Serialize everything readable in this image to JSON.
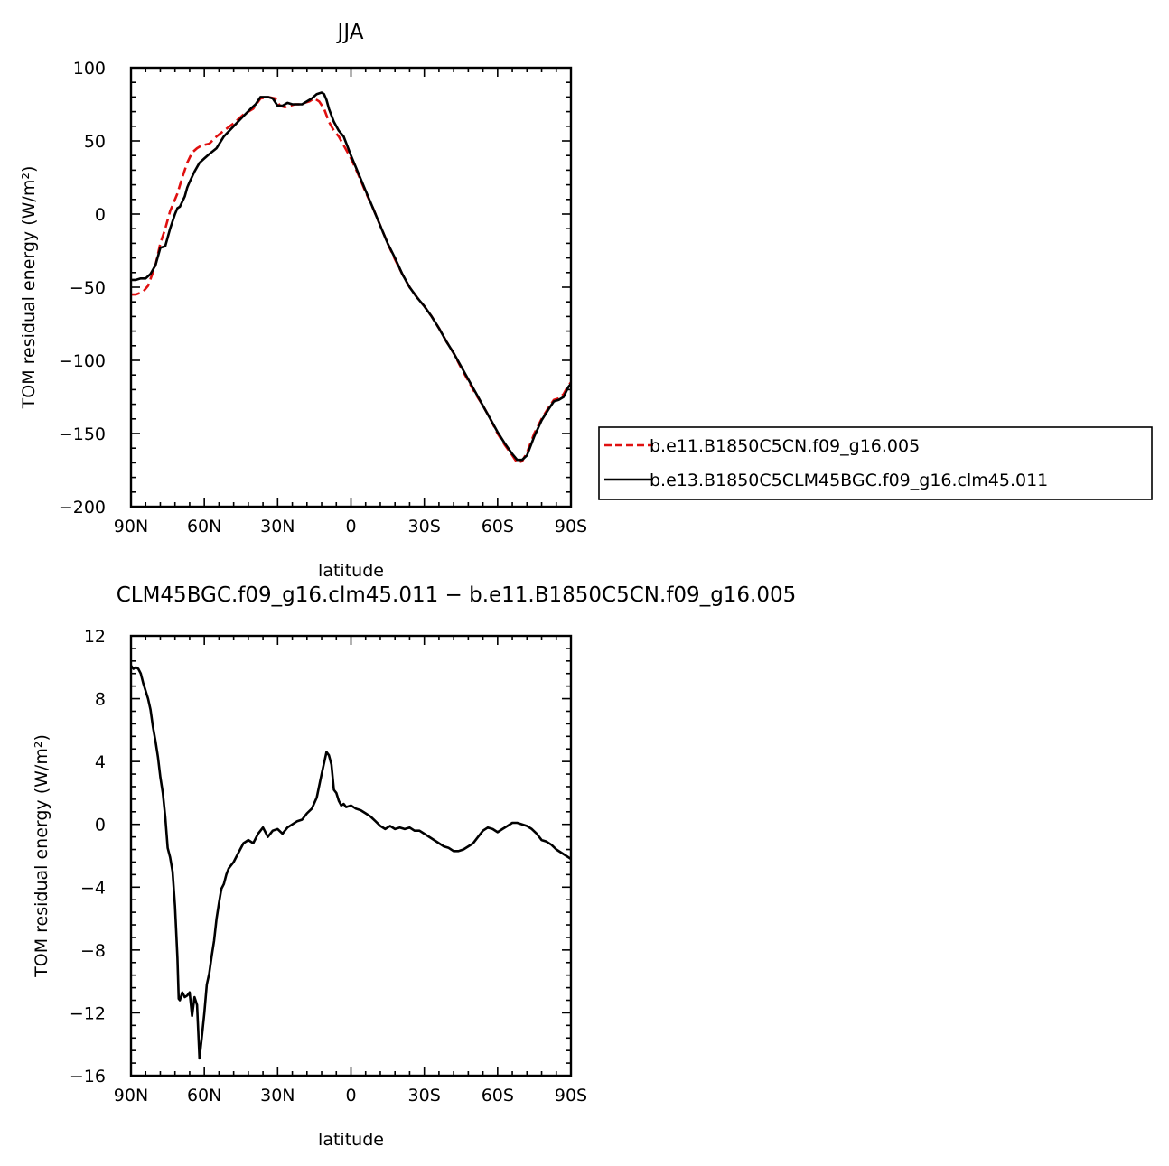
{
  "chart_data": [
    {
      "type": "line",
      "title": "JJA",
      "xlabel": "latitude",
      "ylabel": "TOM residual energy (W/m²)",
      "xlim": [
        90,
        -90
      ],
      "ylim": [
        -200,
        100
      ],
      "xticks": [
        90,
        60,
        30,
        0,
        -30,
        -60,
        -90
      ],
      "xtick_labels": [
        "90N",
        "60N",
        "30N",
        "0",
        "30S",
        "60S",
        "90S"
      ],
      "yticks": [
        100,
        50,
        0,
        -50,
        -100,
        -150,
        -200
      ],
      "ytick_labels": [
        "100",
        "50",
        "0",
        "−50",
        "−100",
        "−150",
        "−200"
      ],
      "legend": "right",
      "series": [
        {
          "name": "b.e11.B1850C5CN.f09_g16.005",
          "color": "#e01010",
          "dash": "dashed",
          "points": [
            [
              90,
              -55
            ],
            [
              88,
              -55
            ],
            [
              85,
              -53
            ],
            [
              83,
              -49
            ],
            [
              80,
              -35
            ],
            [
              78,
              -20
            ],
            [
              76,
              -10
            ],
            [
              74,
              2
            ],
            [
              71,
              14
            ],
            [
              69,
              25
            ],
            [
              67,
              35
            ],
            [
              65,
              42
            ],
            [
              63,
              45
            ],
            [
              61,
              47
            ],
            [
              58,
              48
            ],
            [
              55,
              53
            ],
            [
              52,
              57
            ],
            [
              48,
              62
            ],
            [
              44,
              68
            ],
            [
              40,
              72
            ],
            [
              37,
              79
            ],
            [
              34,
              80
            ],
            [
              31,
              79
            ],
            [
              29,
              74
            ],
            [
              27,
              73
            ],
            [
              25,
              74
            ],
            [
              23,
              75
            ],
            [
              21,
              75
            ],
            [
              19,
              76
            ],
            [
              17,
              77
            ],
            [
              15,
              79
            ],
            [
              13,
              77
            ],
            [
              11,
              72
            ],
            [
              9,
              63
            ],
            [
              7,
              57
            ],
            [
              5,
              53
            ],
            [
              3,
              47
            ],
            [
              0,
              38
            ],
            [
              -3,
              27
            ],
            [
              -6,
              15
            ],
            [
              -9,
              4
            ],
            [
              -12,
              -8
            ],
            [
              -15,
              -20
            ],
            [
              -18,
              -31
            ],
            [
              -21,
              -41
            ],
            [
              -24,
              -50
            ],
            [
              -27,
              -57
            ],
            [
              -30,
              -63
            ],
            [
              -33,
              -70
            ],
            [
              -36,
              -78
            ],
            [
              -39,
              -87
            ],
            [
              -42,
              -95
            ],
            [
              -45,
              -105
            ],
            [
              -48,
              -114
            ],
            [
              -51,
              -123
            ],
            [
              -54,
              -131
            ],
            [
              -57,
              -140
            ],
            [
              -60,
              -150
            ],
            [
              -63,
              -158
            ],
            [
              -66,
              -165
            ],
            [
              -68,
              -170
            ],
            [
              -70,
              -169
            ],
            [
              -72,
              -163
            ],
            [
              -75,
              -150
            ],
            [
              -78,
              -140
            ],
            [
              -81,
              -132
            ],
            [
              -83,
              -127
            ],
            [
              -85,
              -126
            ],
            [
              -87,
              -123
            ],
            [
              -89,
              -117
            ],
            [
              -90,
              -115
            ]
          ]
        },
        {
          "name": "b.e13.B1850C5CLM45BGC.f09_g16.clm45.011",
          "color": "#000000",
          "dash": "solid",
          "points": [
            [
              90,
              -45
            ],
            [
              88,
              -45
            ],
            [
              86,
              -44
            ],
            [
              84,
              -44
            ],
            [
              82,
              -41
            ],
            [
              80,
              -35
            ],
            [
              78,
              -23
            ],
            [
              76,
              -22
            ],
            [
              74,
              -10
            ],
            [
              72,
              0
            ],
            [
              71,
              4
            ],
            [
              70,
              5
            ],
            [
              68,
              12
            ],
            [
              67,
              18
            ],
            [
              66,
              22
            ],
            [
              64,
              29
            ],
            [
              62,
              35
            ],
            [
              60,
              38
            ],
            [
              58,
              41
            ],
            [
              55,
              45
            ],
            [
              52,
              53
            ],
            [
              48,
              60
            ],
            [
              44,
              67
            ],
            [
              41,
              72
            ],
            [
              39,
              75
            ],
            [
              37,
              80
            ],
            [
              34,
              80
            ],
            [
              32,
              79
            ],
            [
              30,
              74
            ],
            [
              28,
              74
            ],
            [
              26,
              76
            ],
            [
              24,
              75
            ],
            [
              22,
              75
            ],
            [
              20,
              75
            ],
            [
              18,
              77
            ],
            [
              16,
              79
            ],
            [
              14,
              82
            ],
            [
              12,
              83
            ],
            [
              11,
              82
            ],
            [
              10,
              78
            ],
            [
              9,
              72
            ],
            [
              7,
              63
            ],
            [
              5,
              57
            ],
            [
              3,
              53
            ],
            [
              0,
              40
            ],
            [
              -3,
              28
            ],
            [
              -6,
              16
            ],
            [
              -9,
              4
            ],
            [
              -12,
              -8
            ],
            [
              -15,
              -20
            ],
            [
              -18,
              -30
            ],
            [
              -21,
              -41
            ],
            [
              -24,
              -50
            ],
            [
              -27,
              -57
            ],
            [
              -30,
              -63
            ],
            [
              -33,
              -70
            ],
            [
              -36,
              -78
            ],
            [
              -39,
              -87
            ],
            [
              -42,
              -95
            ],
            [
              -45,
              -104
            ],
            [
              -48,
              -113
            ],
            [
              -51,
              -122
            ],
            [
              -54,
              -131
            ],
            [
              -57,
              -140
            ],
            [
              -60,
              -149
            ],
            [
              -63,
              -157
            ],
            [
              -66,
              -164
            ],
            [
              -68,
              -168
            ],
            [
              -70,
              -168
            ],
            [
              -72,
              -165
            ],
            [
              -75,
              -152
            ],
            [
              -78,
              -141
            ],
            [
              -81,
              -133
            ],
            [
              -83,
              -128
            ],
            [
              -85,
              -127
            ],
            [
              -87,
              -125
            ],
            [
              -89,
              -118
            ],
            [
              -90,
              -116
            ]
          ]
        }
      ]
    },
    {
      "type": "line",
      "title": "CLM45BGC.f09_g16.clm45.011 − b.e11.B1850C5CN.f09_g16.005",
      "xlabel": "latitude",
      "ylabel": "TOM residual energy (W/m²)",
      "xlim": [
        90,
        -90
      ],
      "ylim": [
        -16,
        12
      ],
      "xticks": [
        90,
        60,
        30,
        0,
        -30,
        -60,
        -90
      ],
      "xtick_labels": [
        "90N",
        "60N",
        "30N",
        "0",
        "30S",
        "60S",
        "90S"
      ],
      "yticks": [
        12,
        8,
        4,
        0,
        -4,
        -8,
        -12,
        -16
      ],
      "ytick_labels": [
        "12",
        "8",
        "4",
        "0",
        "−4",
        "−8",
        "−12",
        "−16"
      ],
      "series": [
        {
          "color": "#000000",
          "dash": "solid",
          "points": [
            [
              90,
              10.1
            ],
            [
              89,
              9.9
            ],
            [
              88,
              10
            ],
            [
              87,
              9.9
            ],
            [
              86,
              9.6
            ],
            [
              85,
              9
            ],
            [
              84,
              8.5
            ],
            [
              83,
              8
            ],
            [
              82,
              7.3
            ],
            [
              81,
              6.2
            ],
            [
              80,
              5.3
            ],
            [
              79,
              4.3
            ],
            [
              78,
              3
            ],
            [
              77,
              2
            ],
            [
              76,
              0.5
            ],
            [
              75,
              -1.5
            ],
            [
              74,
              -2.1
            ],
            [
              73,
              -3
            ],
            [
              72,
              -5.2
            ],
            [
              71,
              -8.5
            ],
            [
              70.5,
              -11.1
            ],
            [
              70,
              -11.2
            ],
            [
              69,
              -10.7
            ],
            [
              68,
              -11
            ],
            [
              67,
              -10.9
            ],
            [
              66,
              -10.7
            ],
            [
              65,
              -12.2
            ],
            [
              64,
              -11
            ],
            [
              63,
              -11.5
            ],
            [
              62,
              -14.9
            ],
            [
              61,
              -13.5
            ],
            [
              60,
              -12
            ],
            [
              59,
              -10.2
            ],
            [
              58,
              -9.5
            ],
            [
              57,
              -8.4
            ],
            [
              56,
              -7.4
            ],
            [
              55,
              -6
            ],
            [
              54,
              -5
            ],
            [
              53,
              -4.1
            ],
            [
              52,
              -3.8
            ],
            [
              51,
              -3.2
            ],
            [
              50,
              -2.8
            ],
            [
              48,
              -2.4
            ],
            [
              46,
              -1.8
            ],
            [
              44,
              -1.2
            ],
            [
              42,
              -1
            ],
            [
              40,
              -1.2
            ],
            [
              38,
              -0.6
            ],
            [
              36,
              -0.2
            ],
            [
              34,
              -0.8
            ],
            [
              32,
              -0.4
            ],
            [
              30,
              -0.3
            ],
            [
              28,
              -0.6
            ],
            [
              26,
              -0.2
            ],
            [
              24,
              0
            ],
            [
              22,
              0.2
            ],
            [
              20,
              0.3
            ],
            [
              18,
              0.7
            ],
            [
              16,
              1
            ],
            [
              14,
              1.7
            ],
            [
              12,
              3.2
            ],
            [
              10,
              4.6
            ],
            [
              9,
              4.4
            ],
            [
              8,
              3.8
            ],
            [
              7,
              2.2
            ],
            [
              6,
              2
            ],
            [
              5,
              1.5
            ],
            [
              4,
              1.2
            ],
            [
              3,
              1.3
            ],
            [
              2,
              1.1
            ],
            [
              0,
              1.2
            ],
            [
              -2,
              1
            ],
            [
              -4,
              0.9
            ],
            [
              -6,
              0.7
            ],
            [
              -8,
              0.5
            ],
            [
              -10,
              0.2
            ],
            [
              -12,
              -0.1
            ],
            [
              -14,
              -0.3
            ],
            [
              -16,
              -0.1
            ],
            [
              -18,
              -0.3
            ],
            [
              -20,
              -0.2
            ],
            [
              -22,
              -0.3
            ],
            [
              -24,
              -0.2
            ],
            [
              -26,
              -0.4
            ],
            [
              -28,
              -0.4
            ],
            [
              -30,
              -0.6
            ],
            [
              -32,
              -0.8
            ],
            [
              -34,
              -1
            ],
            [
              -36,
              -1.2
            ],
            [
              -38,
              -1.4
            ],
            [
              -40,
              -1.5
            ],
            [
              -42,
              -1.7
            ],
            [
              -44,
              -1.7
            ],
            [
              -46,
              -1.6
            ],
            [
              -48,
              -1.4
            ],
            [
              -50,
              -1.2
            ],
            [
              -52,
              -0.8
            ],
            [
              -54,
              -0.4
            ],
            [
              -56,
              -0.2
            ],
            [
              -58,
              -0.3
            ],
            [
              -60,
              -0.5
            ],
            [
              -62,
              -0.3
            ],
            [
              -64,
              -0.1
            ],
            [
              -66,
              0.1
            ],
            [
              -68,
              0.1
            ],
            [
              -70,
              0
            ],
            [
              -72,
              -0.1
            ],
            [
              -74,
              -0.3
            ],
            [
              -76,
              -0.6
            ],
            [
              -78,
              -1
            ],
            [
              -80,
              -1.1
            ],
            [
              -82,
              -1.3
            ],
            [
              -84,
              -1.6
            ],
            [
              -86,
              -1.8
            ],
            [
              -88,
              -2
            ],
            [
              -90,
              -2.2
            ]
          ]
        }
      ]
    }
  ]
}
